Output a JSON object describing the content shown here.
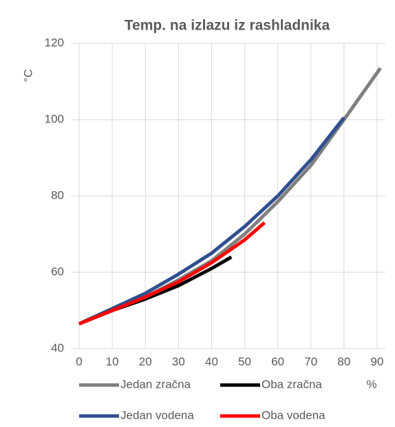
{
  "chart_data": {
    "type": "line",
    "title": "Temp. na izlazu iz rashladnika",
    "y_label": "°C",
    "x_label": "%",
    "xlim": [
      -2.5,
      92.5
    ],
    "xticks": [
      0,
      10,
      20,
      30,
      40,
      50,
      60,
      70,
      80,
      90
    ],
    "ylim": [
      40,
      120
    ],
    "yticks": [
      40,
      60,
      80,
      100,
      120
    ],
    "grid": true,
    "series": [
      {
        "name": "Jedan zračna",
        "color": "#7f7f7f",
        "x": [
          0,
          10,
          20,
          30,
          40,
          50,
          60,
          70,
          80,
          91
        ],
        "values": [
          46.5,
          50,
          53.5,
          58,
          63,
          70,
          78.5,
          88,
          100,
          113.5
        ]
      },
      {
        "name": "Oba zračna",
        "color": "#000000",
        "x": [
          0,
          10,
          20,
          30,
          40,
          46
        ],
        "values": [
          46.5,
          50,
          53,
          56.5,
          61,
          64
        ]
      },
      {
        "name": "Jedan vodena",
        "color": "#2f4f8f",
        "x": [
          0,
          10,
          20,
          30,
          40,
          50,
          60,
          70,
          80
        ],
        "values": [
          46.5,
          50.5,
          54.5,
          59.5,
          65,
          72,
          80,
          89.5,
          100.5
        ]
      },
      {
        "name": "Oba vodena",
        "color": "#ff0000",
        "x": [
          0,
          10,
          20,
          30,
          40,
          50,
          56
        ],
        "values": [
          46.5,
          50,
          53.5,
          57.5,
          62.5,
          68.5,
          73
        ]
      }
    ]
  }
}
